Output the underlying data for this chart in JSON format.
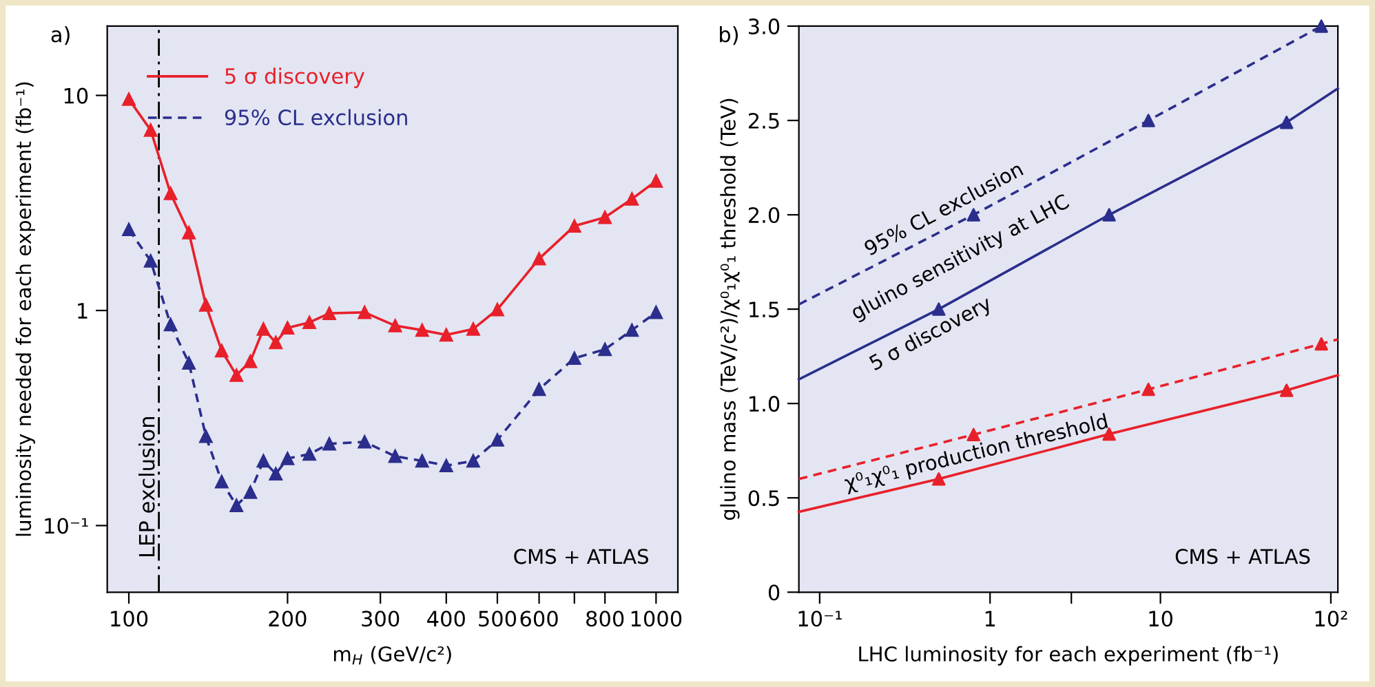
{
  "chart_data": [
    {
      "type": "line",
      "title": "a)",
      "xlabel": "m$_{H}$ (GeV/c²)",
      "ylabel": "luminosity needed for each experiment (fb⁻¹)",
      "log": "xy",
      "xlim": [
        91,
        1100
      ],
      "ylim": [
        0.049,
        21
      ],
      "xticks": [
        100,
        200,
        300,
        400,
        500,
        600,
        {
          "value": 700,
          "label": null
        },
        800,
        1000
      ],
      "yticks": [
        {
          "value": 0.1,
          "label": "10⁻¹"
        },
        1,
        10
      ],
      "marker": "triangle",
      "grid": false,
      "legend": "top",
      "series": [
        {
          "name": "5 σ discovery",
          "color": "#e8202a",
          "line_style": "solid",
          "x": [
            100,
            110,
            120,
            130,
            140,
            150,
            160,
            170,
            180,
            190,
            200,
            220,
            240,
            280,
            320,
            360,
            400,
            450,
            500,
            600,
            700,
            800,
            900,
            1000
          ],
          "values": [
            9.6,
            6.9,
            3.5,
            2.3,
            1.06,
            0.65,
            0.5,
            0.58,
            0.82,
            0.71,
            0.83,
            0.88,
            0.97,
            0.98,
            0.85,
            0.81,
            0.77,
            0.82,
            1.01,
            1.74,
            2.47,
            2.71,
            3.3,
            4.0
          ]
        },
        {
          "name": "95% CL exclusion",
          "color": "#2b2e8c",
          "line_style": "dashed",
          "x": [
            100,
            110,
            120,
            130,
            140,
            150,
            160,
            170,
            180,
            190,
            200,
            220,
            240,
            280,
            320,
            360,
            400,
            450,
            500,
            600,
            700,
            800,
            900,
            1000
          ],
          "values": [
            2.38,
            1.7,
            0.86,
            0.57,
            0.26,
            0.16,
            0.124,
            0.143,
            0.2,
            0.174,
            0.205,
            0.215,
            0.24,
            0.245,
            0.21,
            0.2,
            0.19,
            0.2,
            0.25,
            0.43,
            0.6,
            0.66,
            0.81,
            0.98
          ]
        }
      ],
      "ref_lines": [
        {
          "axis": "x",
          "value": 114,
          "label": "LEP exclusion",
          "color": "#000000",
          "line_style": "dashdot"
        }
      ],
      "annotations": [
        "CMS + ATLAS"
      ]
    },
    {
      "type": "line",
      "title": "b)",
      "xlabel": "LHC luminosity for each experiment (fb⁻¹)",
      "ylabel": "gluino mass (TeV/c²)/χ⁰₁χ⁰₁ threshold (TeV)",
      "log": "x",
      "xlim": [
        0.0755,
        110
      ],
      "ylim": [
        0,
        3.0
      ],
      "xticks": [
        {
          "value": 0.1,
          "label": "10⁻¹"
        },
        1,
        {
          "value": 3,
          "label": null
        },
        10,
        {
          "value": 100,
          "label": "10²"
        }
      ],
      "yticks": [
        0,
        0.5,
        {
          "value": 1,
          "label": "1.0"
        },
        1.5,
        {
          "value": 2,
          "label": "2.0"
        },
        2.5,
        {
          "value": 3,
          "label": "3.0"
        }
      ],
      "grid": false,
      "legend": false,
      "series": [
        {
          "type": "line",
          "color": "#2b2e8c",
          "line_style": "dashed",
          "x": [
            0.0755,
            0.8,
            8.5,
            88
          ],
          "values": [
            1.525,
            2.0,
            2.5,
            3.0
          ]
        },
        {
          "type": "line",
          "color": "#2b2e8c",
          "line_style": "solid",
          "x": [
            0.0755,
            0.5,
            5,
            55,
            110
          ],
          "values": [
            1.128,
            1.5,
            2.0,
            2.49,
            2.67
          ]
        },
        {
          "type": "line",
          "color": "#e8202a",
          "line_style": "dashed",
          "x": [
            0.0755,
            0.8,
            8.5,
            88,
            110
          ],
          "values": [
            0.6,
            0.835,
            1.075,
            1.316,
            1.34
          ]
        },
        {
          "type": "line",
          "color": "#e8202a",
          "line_style": "solid",
          "x": [
            0.0755,
            0.5,
            5,
            55,
            110
          ],
          "values": [
            0.426,
            0.6,
            0.838,
            1.07,
            1.15
          ]
        },
        {
          "type": "scatter",
          "color": "#2b2e8c",
          "marker": "triangle",
          "x": [
            0.8,
            8.5,
            88
          ],
          "values": [
            2.0,
            2.5,
            3.0
          ]
        },
        {
          "type": "scatter",
          "color": "#2b2e8c",
          "marker": "triangle",
          "x": [
            0.5,
            5,
            55
          ],
          "values": [
            1.5,
            2.0,
            2.49
          ]
        },
        {
          "type": "scatter",
          "color": "#e8202a",
          "marker": "triangle",
          "x": [
            0.8,
            8.5,
            88
          ],
          "values": [
            0.835,
            1.075,
            1.316
          ]
        },
        {
          "type": "scatter",
          "color": "#e8202a",
          "marker": "triangle",
          "x": [
            0.5,
            5,
            55
          ],
          "values": [
            0.6,
            0.838,
            1.07
          ]
        }
      ],
      "annotations": [
        "95% CL exclusion",
        "gluino sensitivity at LHC",
        "5 σ discovery",
        "χ⁰₁χ⁰₁ production threshold",
        "CMS + ATLAS"
      ]
    }
  ]
}
